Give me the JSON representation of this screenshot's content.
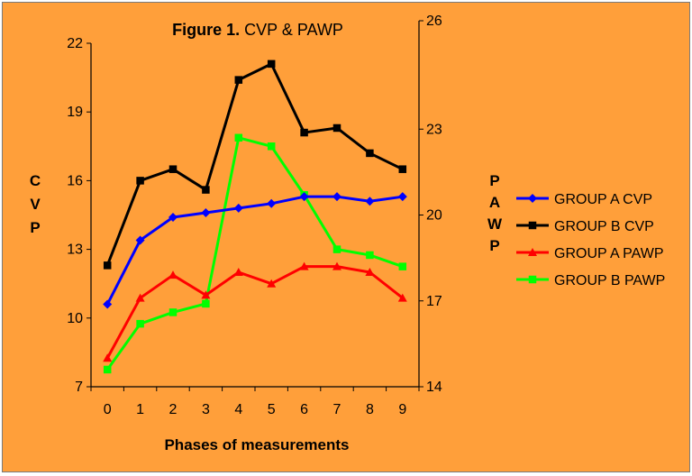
{
  "chart_data": {
    "type": "line",
    "title_bold": "Figure 1.",
    "title_rest": " CVP & PAWP",
    "xlabel": "Phases of measurements",
    "ylabel_left": "CVP",
    "ylabel_right": "PAWP",
    "categories": [
      "0",
      "1",
      "2",
      "3",
      "4",
      "5",
      "6",
      "7",
      "8",
      "9"
    ],
    "y_left": {
      "min": 7,
      "max": 22,
      "ticks": [
        7,
        10,
        13,
        16,
        19,
        22
      ]
    },
    "y_right": {
      "min": 14,
      "max": 26,
      "ticks": [
        14,
        17,
        20,
        23,
        26
      ]
    },
    "series": [
      {
        "name": "GROUP A CVP",
        "axis": "left",
        "color": "#0000FF",
        "marker": "diamond",
        "values": [
          10.6,
          13.4,
          14.4,
          14.6,
          14.8,
          15.0,
          15.3,
          15.3,
          15.1,
          15.3
        ]
      },
      {
        "name": "GROUP B CVP",
        "axis": "left",
        "color": "#000000",
        "marker": "square",
        "values": [
          12.3,
          16.0,
          16.5,
          15.6,
          20.4,
          21.1,
          18.1,
          18.3,
          17.2,
          16.5
        ]
      },
      {
        "name": "GROUP A PAWP",
        "axis": "right",
        "color": "#FF0000",
        "marker": "triangle",
        "values": [
          15.0,
          17.1,
          17.9,
          17.2,
          18.0,
          17.6,
          18.2,
          18.2,
          18.0,
          17.1
        ]
      },
      {
        "name": "GROUP B PAWP",
        "axis": "right",
        "color": "#00FF00",
        "marker": "square",
        "values": [
          14.6,
          16.2,
          16.6,
          16.9,
          22.7,
          22.4,
          20.7,
          18.8,
          18.6,
          18.2
        ]
      }
    ],
    "legend_position": "right"
  }
}
